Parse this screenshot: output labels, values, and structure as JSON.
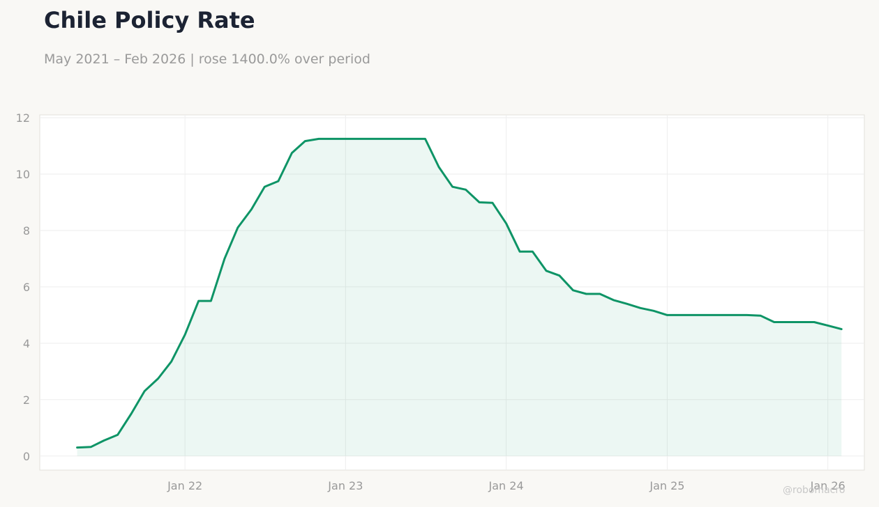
{
  "header": {
    "title": "Chile Policy Rate",
    "subtitle": "May 2021 – Feb 2026 | rose 1400.0% over period"
  },
  "watermark": "@robomacro",
  "colors": {
    "line": "#0e9466",
    "fill": "#0e9466",
    "background": "#f9f8f5",
    "plot_background": "#ffffff",
    "grid": "#eeeeee",
    "tick_text": "#999999"
  },
  "chart_data": {
    "type": "area",
    "title": "Chile Policy Rate",
    "subtitle": "May 2021 – Feb 2026 | rose 1400.0% over period",
    "xlabel": "",
    "ylabel": "",
    "ylim": [
      -0.5,
      12.1
    ],
    "xlim": [
      "2021-02-05",
      "2026-03-25"
    ],
    "grid": true,
    "legend": "none",
    "x_ticks": [
      {
        "date": "2022-01-01",
        "label": "Jan 22"
      },
      {
        "date": "2023-01-01",
        "label": "Jan 23"
      },
      {
        "date": "2024-01-01",
        "label": "Jan 24"
      },
      {
        "date": "2025-01-01",
        "label": "Jan 25"
      },
      {
        "date": "2026-01-01",
        "label": "Jan 26"
      }
    ],
    "y_ticks": [
      0,
      2,
      4,
      6,
      8,
      10,
      12
    ],
    "series": [
      {
        "x": [
          "2021-05-01",
          "2021-06-01",
          "2021-07-01",
          "2021-08-01",
          "2021-09-01",
          "2021-10-01",
          "2021-11-01",
          "2021-12-01",
          "2022-01-01",
          "2022-02-01",
          "2022-03-01",
          "2022-04-01",
          "2022-05-01",
          "2022-06-01",
          "2022-07-01",
          "2022-08-01",
          "2022-09-01",
          "2022-10-01",
          "2022-11-01",
          "2022-12-01",
          "2023-01-01",
          "2023-02-01",
          "2023-03-01",
          "2023-04-01",
          "2023-05-01",
          "2023-06-01",
          "2023-07-01",
          "2023-08-01",
          "2023-09-01",
          "2023-10-01",
          "2023-11-01",
          "2023-12-01",
          "2024-01-01",
          "2024-02-01",
          "2024-03-01",
          "2024-04-01",
          "2024-05-01",
          "2024-06-01",
          "2024-07-01",
          "2024-08-01",
          "2024-09-01",
          "2024-10-01",
          "2024-11-01",
          "2024-12-01",
          "2025-01-01",
          "2025-02-01",
          "2025-03-01",
          "2025-04-01",
          "2025-05-01",
          "2025-06-01",
          "2025-07-01",
          "2025-08-01",
          "2025-09-01",
          "2025-10-01",
          "2025-11-01",
          "2025-12-01",
          "2026-01-01",
          "2026-02-01"
        ],
        "values": [
          0.3,
          0.32,
          0.55,
          0.75,
          1.5,
          2.3,
          2.75,
          3.35,
          4.3,
          5.5,
          5.5,
          7.0,
          8.1,
          8.75,
          9.55,
          9.75,
          10.75,
          11.17,
          11.25,
          11.25,
          11.25,
          11.25,
          11.25,
          11.25,
          11.25,
          11.25,
          11.25,
          10.25,
          9.55,
          9.45,
          9.0,
          8.98,
          8.25,
          7.25,
          7.25,
          6.57,
          6.4,
          5.88,
          5.75,
          5.75,
          5.53,
          5.4,
          5.25,
          5.15,
          5.0,
          5.0,
          5.0,
          5.0,
          5.0,
          5.0,
          5.0,
          4.98,
          4.75,
          4.75,
          4.75,
          4.75,
          4.63,
          4.5
        ]
      }
    ]
  }
}
